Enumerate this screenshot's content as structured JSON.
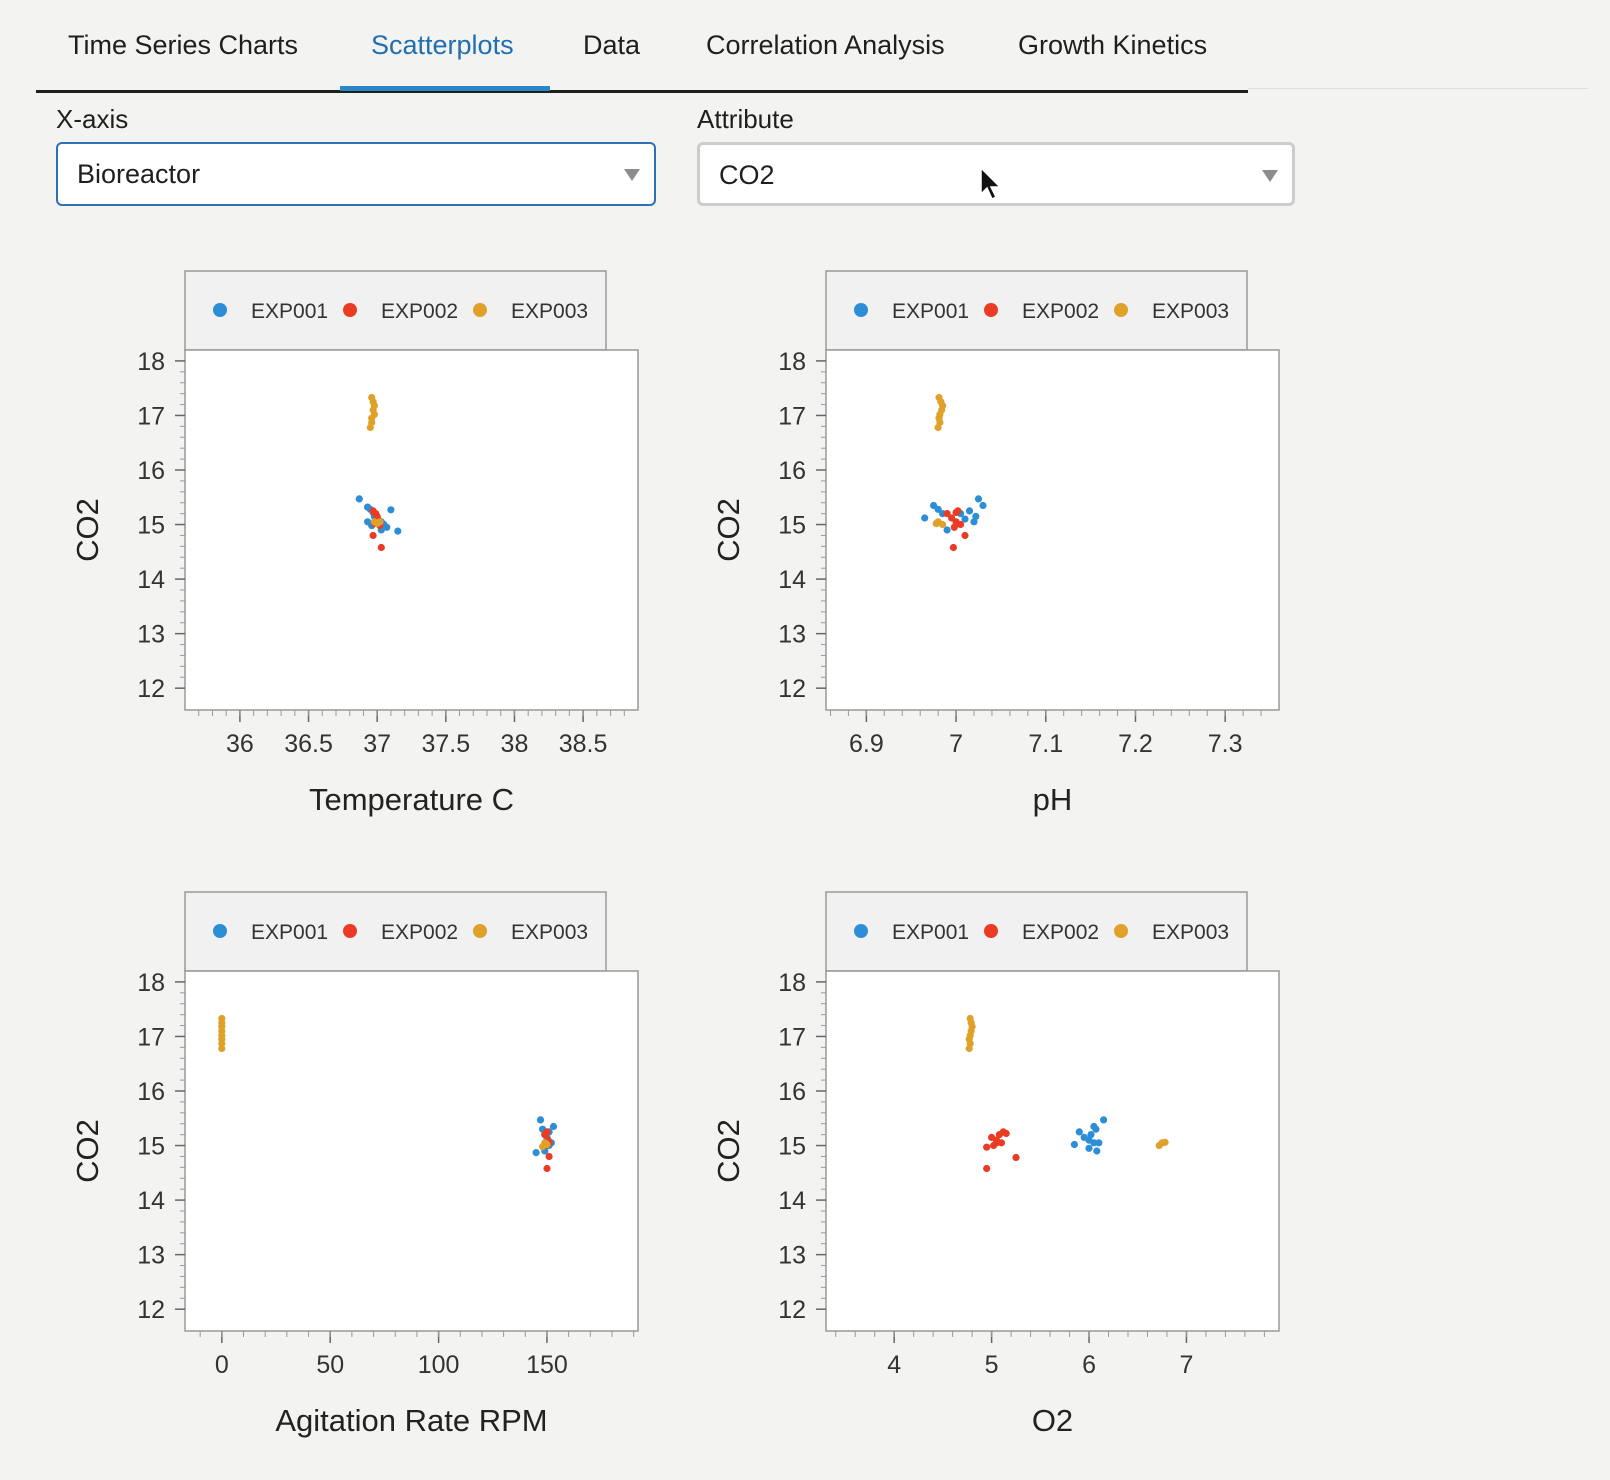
{
  "tabs": [
    {
      "label": "Time Series Charts",
      "active": false
    },
    {
      "label": "Scatterplots",
      "active": true
    },
    {
      "label": "Data",
      "active": false
    },
    {
      "label": "Correlation Analysis",
      "active": false
    },
    {
      "label": "Growth Kinetics",
      "active": false
    }
  ],
  "controls": {
    "xaxis_label": "X-axis",
    "xaxis_value": "Bioreactor",
    "attribute_label": "Attribute",
    "attribute_value": "CO2"
  },
  "legend": [
    {
      "name": "EXP001",
      "color": "#2c8fd6"
    },
    {
      "name": "EXP002",
      "color": "#ec3b24"
    },
    {
      "name": "EXP003",
      "color": "#e0a12a"
    }
  ],
  "chart_data": [
    {
      "type": "scatter",
      "xlabel": "Temperature C",
      "ylabel": "CO2",
      "xlim": [
        35.6,
        38.9
      ],
      "ylim": [
        11.6,
        18.2
      ],
      "xticks": [
        36,
        36.5,
        37,
        37.5,
        38,
        38.5
      ],
      "yticks": [
        12,
        13,
        14,
        15,
        16,
        17,
        18
      ],
      "series": [
        {
          "name": "EXP001",
          "points": [
            [
              36.87,
              15.47
            ],
            [
              36.93,
              15.32
            ],
            [
              36.95,
              15.28
            ],
            [
              36.97,
              15.22
            ],
            [
              36.98,
              15.15
            ],
            [
              37.0,
              15.1
            ],
            [
              37.03,
              15.05
            ],
            [
              37.05,
              15.0
            ],
            [
              37.07,
              14.95
            ],
            [
              37.03,
              14.9
            ],
            [
              37.1,
              15.27
            ],
            [
              37.15,
              14.88
            ],
            [
              36.93,
              15.05
            ],
            [
              36.96,
              14.98
            ]
          ]
        },
        {
          "name": "EXP002",
          "points": [
            [
              36.97,
              15.25
            ],
            [
              36.99,
              15.2
            ],
            [
              37.0,
              15.15
            ],
            [
              37.01,
              15.08
            ],
            [
              36.98,
              15.02
            ],
            [
              37.02,
              14.98
            ],
            [
              36.97,
              14.8
            ],
            [
              37.03,
              14.58
            ],
            [
              37.0,
              15.05
            ]
          ]
        },
        {
          "name": "EXP003",
          "points": [
            [
              36.96,
              17.33
            ],
            [
              36.97,
              17.25
            ],
            [
              36.98,
              17.18
            ],
            [
              36.97,
              17.1
            ],
            [
              36.98,
              17.02
            ],
            [
              36.96,
              16.95
            ],
            [
              36.96,
              16.87
            ],
            [
              36.95,
              16.78
            ],
            [
              36.98,
              15.05
            ],
            [
              37.0,
              15.02
            ],
            [
              37.02,
              15.05
            ]
          ]
        }
      ]
    },
    {
      "type": "scatter",
      "xlabel": "pH",
      "ylabel": "CO2",
      "xlim": [
        6.855,
        7.36
      ],
      "ylim": [
        11.6,
        18.2
      ],
      "xticks": [
        6.9,
        7,
        7.1,
        7.2,
        7.3
      ],
      "yticks": [
        12,
        13,
        14,
        15,
        16,
        17,
        18
      ],
      "series": [
        {
          "name": "EXP001",
          "points": [
            [
              6.965,
              15.12
            ],
            [
              6.975,
              15.35
            ],
            [
              6.978,
              15.02
            ],
            [
              6.98,
              15.28
            ],
            [
              6.99,
              14.9
            ],
            [
              7.0,
              15.0
            ],
            [
              7.005,
              15.2
            ],
            [
              7.01,
              15.1
            ],
            [
              7.015,
              15.25
            ],
            [
              7.02,
              15.05
            ],
            [
              7.022,
              15.15
            ],
            [
              7.025,
              15.47
            ],
            [
              6.985,
              15.2
            ],
            [
              7.03,
              15.35
            ]
          ]
        },
        {
          "name": "EXP002",
          "points": [
            [
              6.99,
              15.2
            ],
            [
              6.995,
              15.12
            ],
            [
              7.0,
              15.05
            ],
            [
              7.002,
              15.25
            ],
            [
              7.005,
              15.0
            ],
            [
              6.998,
              14.95
            ],
            [
              7.0,
              15.22
            ],
            [
              7.01,
              14.8
            ],
            [
              6.997,
              14.58
            ]
          ]
        },
        {
          "name": "EXP003",
          "points": [
            [
              6.981,
              17.33
            ],
            [
              6.983,
              17.25
            ],
            [
              6.985,
              17.18
            ],
            [
              6.984,
              17.1
            ],
            [
              6.982,
              17.02
            ],
            [
              6.981,
              16.95
            ],
            [
              6.982,
              16.87
            ],
            [
              6.98,
              16.78
            ],
            [
              6.98,
              15.05
            ],
            [
              6.985,
              15.0
            ],
            [
              6.978,
              15.02
            ]
          ]
        }
      ]
    },
    {
      "type": "scatter",
      "xlabel": "Agitation Rate RPM",
      "ylabel": "CO2",
      "xlim": [
        -17,
        192
      ],
      "ylim": [
        11.6,
        18.2
      ],
      "xticks": [
        0,
        50,
        100,
        150
      ],
      "yticks": [
        12,
        13,
        14,
        15,
        16,
        17,
        18
      ],
      "series": [
        {
          "name": "EXP001",
          "points": [
            [
              145,
              14.87
            ],
            [
              147,
              15.47
            ],
            [
              148,
              15.3
            ],
            [
              149,
              15.2
            ],
            [
              150,
              15.1
            ],
            [
              151,
              15.0
            ],
            [
              152,
              15.05
            ],
            [
              149,
              14.9
            ],
            [
              153,
              15.35
            ],
            [
              150,
              15.15
            ],
            [
              151,
              15.25
            ]
          ]
        },
        {
          "name": "EXP002",
          "points": [
            [
              149,
              15.2
            ],
            [
              150,
              15.25
            ],
            [
              150.5,
              15.1
            ],
            [
              151,
              15.05
            ],
            [
              149.5,
              15.0
            ],
            [
              151,
              14.8
            ],
            [
              150,
              14.58
            ]
          ]
        },
        {
          "name": "EXP003",
          "points": [
            [
              0,
              17.33
            ],
            [
              0,
              17.25
            ],
            [
              0,
              17.18
            ],
            [
              0,
              17.1
            ],
            [
              0,
              17.02
            ],
            [
              0,
              16.95
            ],
            [
              0,
              16.87
            ],
            [
              0,
              16.78
            ],
            [
              149,
              15.05
            ],
            [
              148,
              14.98
            ],
            [
              150,
              15.02
            ]
          ]
        }
      ]
    },
    {
      "type": "scatter",
      "xlabel": "O2",
      "ylabel": "CO2",
      "xlim": [
        3.3,
        7.95
      ],
      "ylim": [
        11.6,
        18.2
      ],
      "xticks": [
        4,
        5,
        6,
        7
      ],
      "yticks": [
        12,
        13,
        14,
        15,
        16,
        17,
        18
      ],
      "series": [
        {
          "name": "EXP001",
          "points": [
            [
              5.85,
              15.02
            ],
            [
              5.9,
              15.25
            ],
            [
              5.95,
              15.15
            ],
            [
              6.0,
              15.1
            ],
            [
              6.02,
              15.2
            ],
            [
              6.05,
              15.05
            ],
            [
              6.07,
              15.3
            ],
            [
              6.08,
              14.9
            ],
            [
              6.1,
              15.05
            ],
            [
              6.15,
              15.47
            ],
            [
              6.05,
              15.35
            ],
            [
              6.0,
              14.95
            ]
          ]
        },
        {
          "name": "EXP002",
          "points": [
            [
              4.95,
              14.97
            ],
            [
              5.0,
              15.15
            ],
            [
              5.02,
              15.0
            ],
            [
              5.05,
              15.1
            ],
            [
              5.08,
              15.2
            ],
            [
              5.1,
              15.05
            ],
            [
              5.12,
              15.25
            ],
            [
              5.15,
              15.22
            ],
            [
              5.25,
              14.78
            ],
            [
              4.95,
              14.58
            ],
            [
              5.05,
              15.05
            ]
          ]
        },
        {
          "name": "EXP003",
          "points": [
            [
              4.78,
              17.33
            ],
            [
              4.79,
              17.25
            ],
            [
              4.8,
              17.18
            ],
            [
              4.79,
              17.1
            ],
            [
              4.78,
              17.02
            ],
            [
              4.77,
              16.95
            ],
            [
              4.78,
              16.87
            ],
            [
              4.77,
              16.78
            ],
            [
              6.72,
              15.0
            ],
            [
              6.75,
              15.05
            ],
            [
              6.78,
              15.06
            ]
          ]
        }
      ]
    }
  ]
}
